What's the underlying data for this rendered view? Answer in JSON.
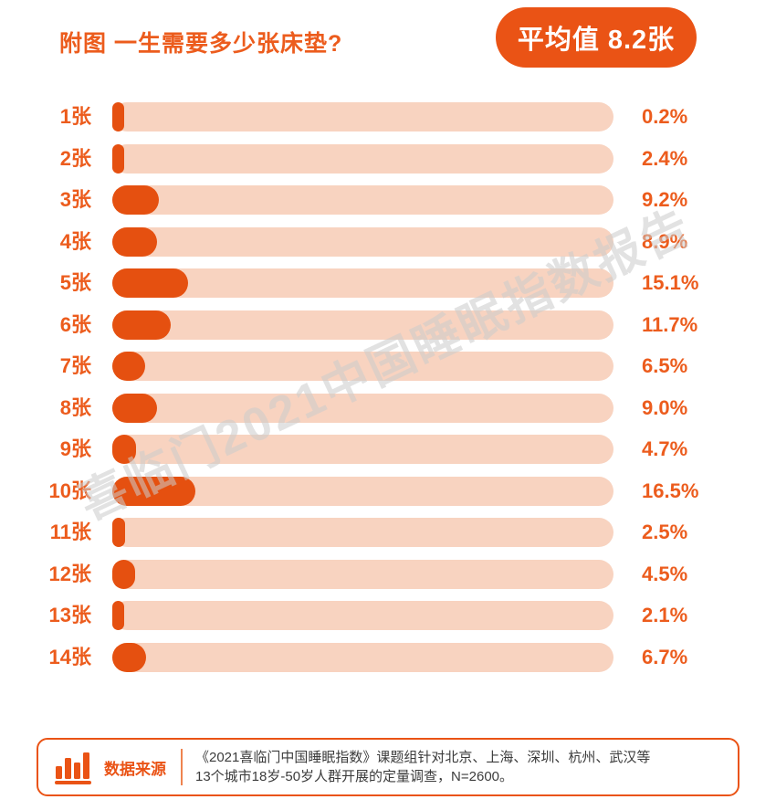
{
  "colors": {
    "accent": "#ea5315",
    "accent_text": "#ec5c1d",
    "bar_fill": "#e55010",
    "bar_track": "#f8d3c0",
    "watermark": "#cccccc",
    "divider": "#ef8450",
    "footer_text": "#3c3c3c"
  },
  "watermark_text": "喜临门2021中国睡眠指数报告",
  "chart_data": {
    "type": "bar",
    "orientation": "horizontal",
    "title": "附图 一生需要多少张床垫?",
    "annotation_average": "平均值 8.2张",
    "categories": [
      "1张",
      "2张",
      "3张",
      "4张",
      "5张",
      "6张",
      "7张",
      "8张",
      "9张",
      "10张",
      "11张",
      "12张",
      "13张",
      "14张"
    ],
    "values": [
      0.2,
      2.4,
      9.2,
      8.9,
      15.1,
      11.7,
      6.5,
      9.0,
      4.7,
      16.5,
      2.5,
      4.5,
      2.1,
      6.7
    ],
    "value_labels": [
      "0.2%",
      "2.4%",
      "9.2%",
      "8.9%",
      "15.1%",
      "11.7%",
      "6.5%",
      "9.0%",
      "4.7%",
      "16.5%",
      "2.5%",
      "4.5%",
      "2.1%",
      "6.7%"
    ],
    "unit": "%",
    "xlim": [
      0,
      100
    ],
    "grid": false,
    "legend": false
  },
  "footer": {
    "source_label": "数据来源",
    "line1": "《2021喜临门中国睡眠指数》课题组针对北京、上海、深圳、杭州、武汉等",
    "line2": "13个城市18岁-50岁人群开展的定量调查，N=2600。",
    "chart_icon": "bar-chart-icon"
  }
}
